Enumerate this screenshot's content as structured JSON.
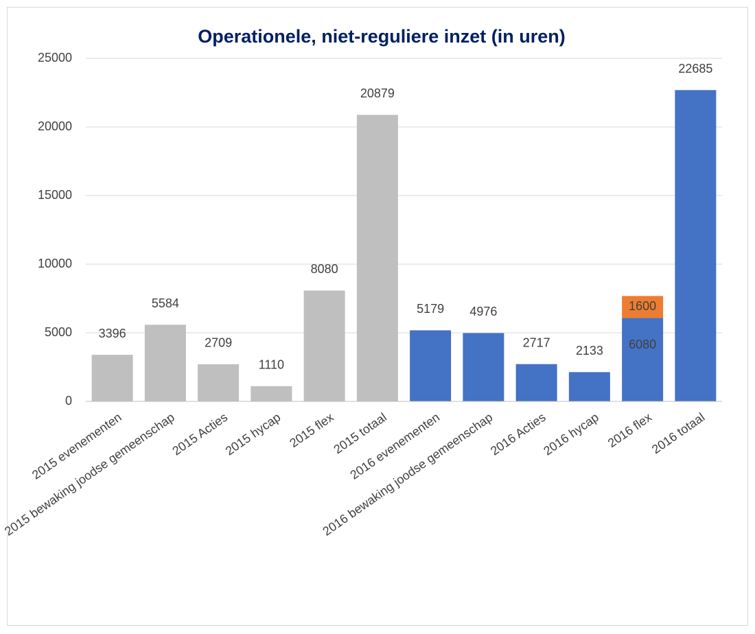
{
  "chart_data": {
    "type": "bar",
    "title": "Operationele, niet-reguliere inzet (in uren)",
    "categories": [
      "2015 evenementen",
      "2015 bewaking joodse gemeenschap",
      "2015 Acties",
      "2015 hycap",
      "2015 flex",
      "2015 totaal",
      "2016 evenementen",
      "2016 bewaking joodse gemeenschap",
      "2016 Acties",
      "2016 hycap",
      "2016 flex",
      "2016 totaal"
    ],
    "series": [
      {
        "values": [
          3396,
          5584,
          2709,
          1110,
          8080,
          20879,
          5179,
          4976,
          2717,
          2133,
          6080,
          22685
        ],
        "colors": [
          "#bfbfbf",
          "#bfbfbf",
          "#bfbfbf",
          "#bfbfbf",
          "#bfbfbf",
          "#bfbfbf",
          "#4472c4",
          "#4472c4",
          "#4472c4",
          "#4472c4",
          "#4472c4",
          "#4472c4"
        ]
      },
      {
        "values": [
          null,
          null,
          null,
          null,
          null,
          null,
          null,
          null,
          null,
          null,
          1600,
          null
        ],
        "color": "#ed7d31"
      }
    ],
    "stacked": true,
    "ylim": [
      0,
      25000
    ],
    "yticks": [
      0,
      5000,
      10000,
      15000,
      20000,
      25000
    ],
    "grid": true
  }
}
